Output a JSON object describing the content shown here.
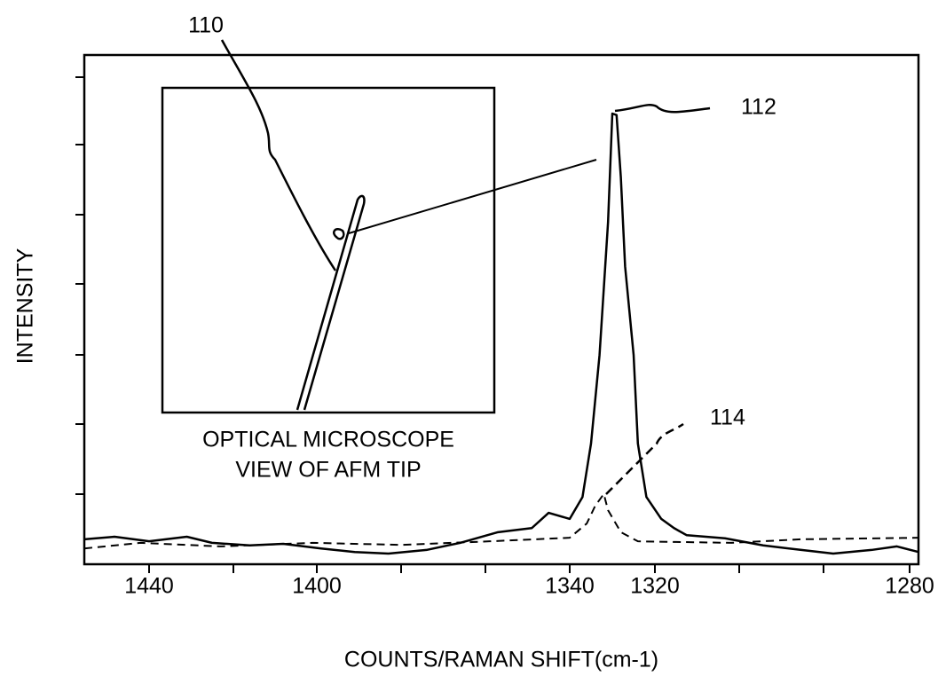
{
  "chart_data": {
    "type": "line",
    "x_label": "COUNTS/RAMAN SHIFT(cm-1)",
    "y_label": "INTENSITY",
    "xlim": [
      1455,
      1279
    ],
    "ylim": [
      0,
      100
    ],
    "xticks": [
      1440,
      1400,
      1340,
      1320,
      1280
    ],
    "annotations": [
      "110",
      "OPTICAL MICROSCOPE",
      "VIEW OF AFM TIP"
    ],
    "series": [
      {
        "name": "112",
        "color": "#000000",
        "style": "solid",
        "x": [
          1455,
          1448,
          1440,
          1431,
          1425,
          1416,
          1408,
          1399,
          1391,
          1383,
          1374,
          1366,
          1357,
          1349,
          1345,
          1340,
          1337,
          1335,
          1333,
          1331,
          1330,
          1329,
          1328,
          1327,
          1325,
          1324,
          1322,
          1319,
          1317,
          1315,
          1309,
          1303,
          1297,
          1292,
          1286,
          1282,
          1279
        ],
        "values": [
          4.9,
          5.4,
          4.5,
          5.4,
          4.2,
          3.7,
          4.0,
          3.1,
          2.4,
          2.1,
          2.8,
          4.2,
          6.3,
          7.1,
          10.1,
          8.9,
          13.2,
          23.7,
          41.1,
          67.2,
          88.5,
          88.2,
          76,
          58.5,
          41.1,
          23.7,
          13.2,
          8.9,
          7.1,
          5.7,
          5.1,
          3.7,
          2.8,
          2.1,
          2.8,
          3.5,
          2.4
        ]
      },
      {
        "name": "114",
        "color": "#000000",
        "style": "dashed",
        "x": [
          1455,
          1442,
          1423,
          1401,
          1380,
          1359,
          1340,
          1336,
          1334,
          1332,
          1331,
          1328,
          1324,
          1308,
          1297,
          1279
        ],
        "values": [
          3.1,
          4.2,
          3.5,
          4.2,
          3.8,
          4.5,
          5.2,
          8.0,
          11.5,
          13.8,
          10.6,
          6.3,
          4.5,
          4.2,
          4.9,
          5.2
        ]
      }
    ]
  }
}
